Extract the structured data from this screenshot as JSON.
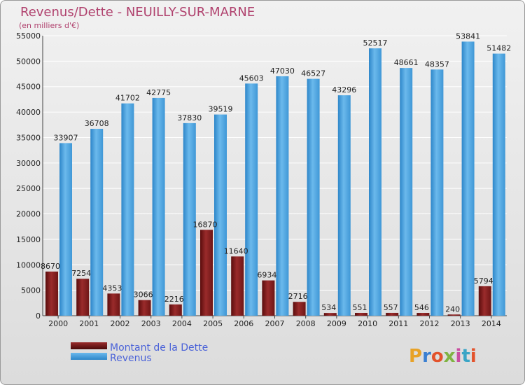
{
  "colors": {
    "title": "#b0426e",
    "debt_bar": "#7a1a1a",
    "revenue_bar": "#4aa3e0",
    "legend_text": "#4a62d8",
    "axis_text": "#222222",
    "grid": "#ffffff"
  },
  "logo": {
    "text": "Proxiti"
  },
  "chart_data": {
    "type": "bar",
    "title": "Revenus/Dette - NEUILLY-SUR-MARNE",
    "subtitle": "(en milliers d'€)",
    "xlabel": "",
    "ylabel": "",
    "ylim": [
      0,
      55000
    ],
    "yticks": [
      0,
      5000,
      10000,
      15000,
      20000,
      25000,
      30000,
      35000,
      40000,
      45000,
      50000,
      55000
    ],
    "grid": true,
    "legend_position": "bottom-left",
    "categories": [
      "2000",
      "2001",
      "2002",
      "2003",
      "2004",
      "2005",
      "2006",
      "2007",
      "2008",
      "2009",
      "2010",
      "2011",
      "2012",
      "2013",
      "2014"
    ],
    "series": [
      {
        "name": "Montant de la Dette",
        "color_key": "debt_bar",
        "values": [
          8670,
          7254,
          4353,
          3066,
          2216,
          16870,
          11640,
          6934,
          2716,
          534,
          551,
          557,
          546,
          240,
          5794
        ],
        "labels": [
          "8670",
          "7254",
          "4353",
          "3066",
          "2216",
          "16870",
          "11640",
          "6934",
          "2716",
          "534",
          "551",
          "557",
          "546",
          "240",
          "5794"
        ]
      },
      {
        "name": "Revenus",
        "color_key": "revenue_bar",
        "values": [
          33907,
          36708,
          41702,
          42775,
          37830,
          39519,
          45603,
          47030,
          46527,
          43296,
          52517,
          48661,
          48357,
          53841,
          51482
        ],
        "labels": [
          "33907",
          "36708",
          "41702",
          "42775",
          "37830",
          "39519",
          "45603",
          "47030",
          "46527",
          "43296",
          "52517",
          "48661",
          "48357",
          "53841",
          "51482"
        ]
      }
    ]
  }
}
